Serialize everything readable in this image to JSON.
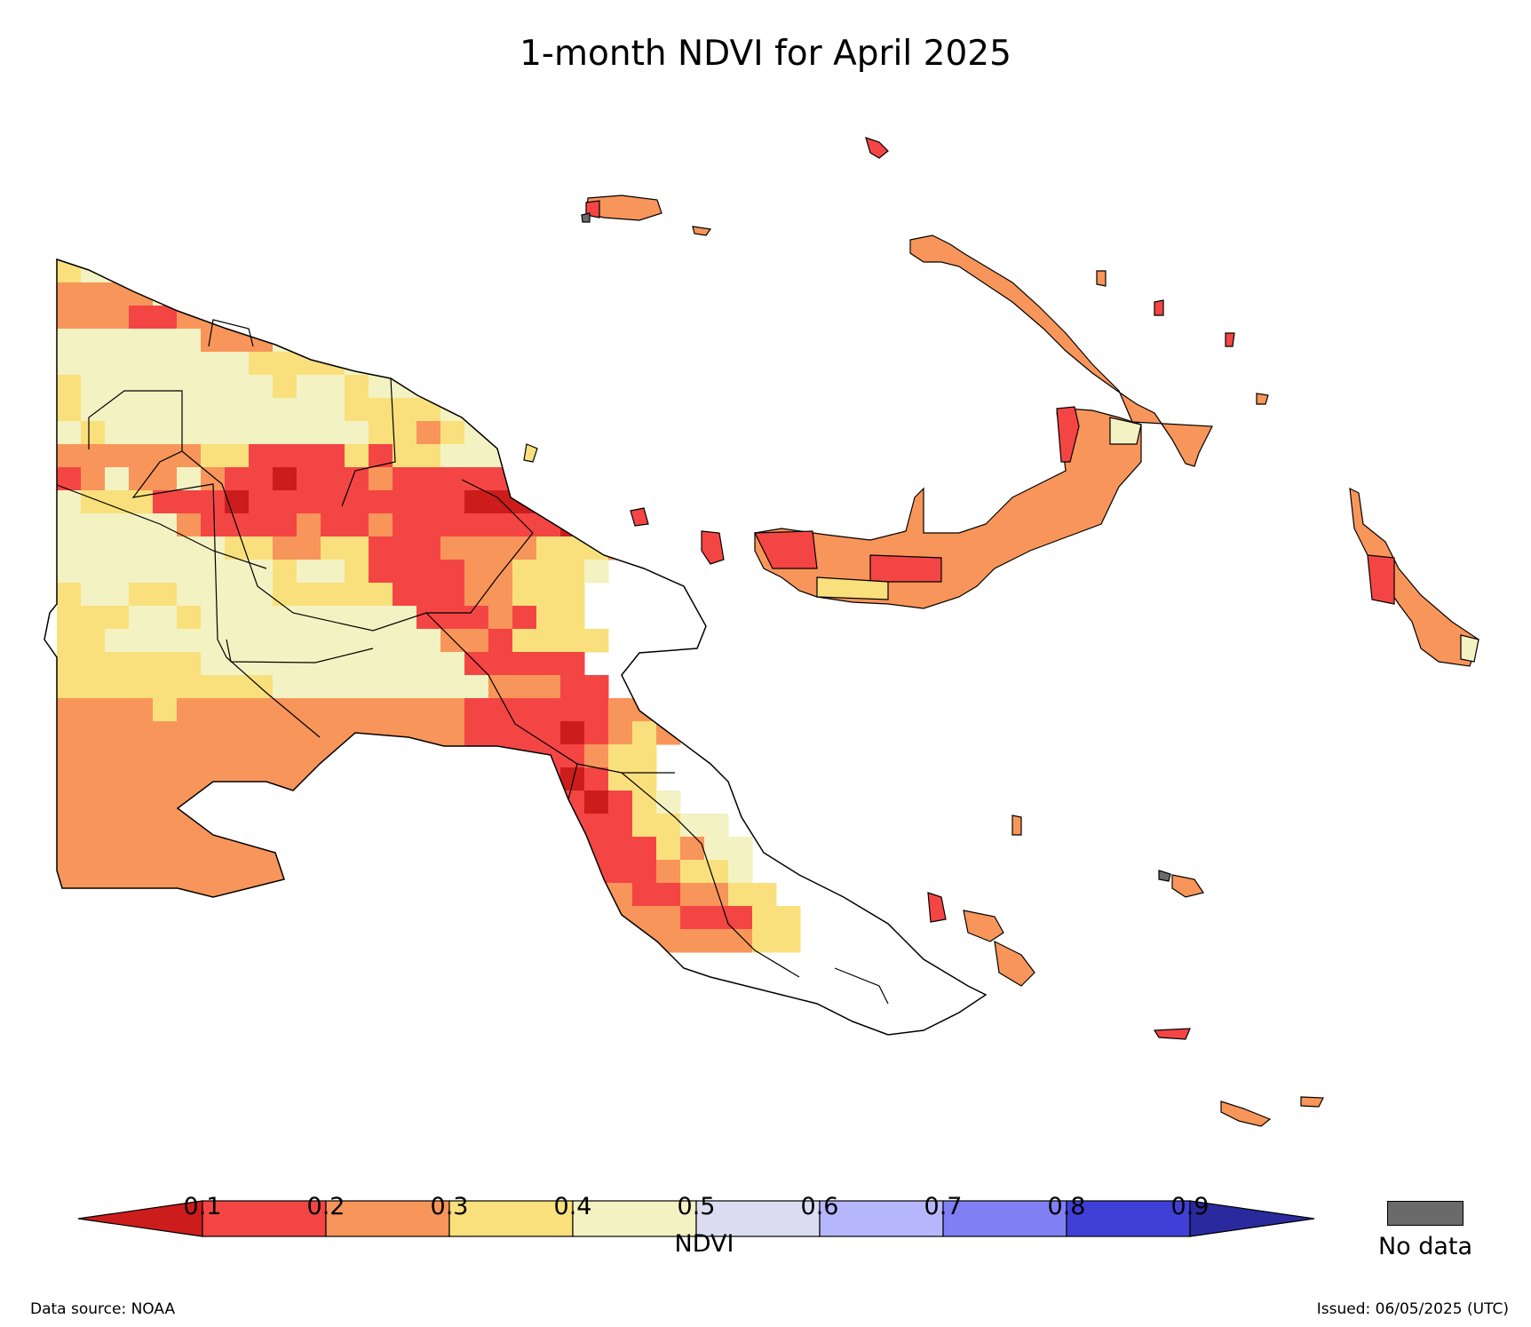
{
  "title": "1-month NDVI for April 2025",
  "colorbar": {
    "label": "NDVI",
    "ticks": [
      "0.1",
      "0.2",
      "0.3",
      "0.4",
      "0.5",
      "0.6",
      "0.7",
      "0.8",
      "0.9"
    ],
    "colors": {
      "under": "#cc1c1c",
      "c1": "#f44545",
      "c2": "#f8955a",
      "c3": "#f9e07c",
      "c4": "#f3f2c2",
      "c5": "#dcddf1",
      "c6": "#b6b6fc",
      "c7": "#8080f4",
      "c8": "#4040d8",
      "over": "#2a2a9e"
    },
    "nodata_label": "No data",
    "nodata_color": "#6a6a6a"
  },
  "map_regions": [
    {
      "name": "new-guinea-west",
      "ndvi_class": "0.3-0.4"
    },
    {
      "name": "highlands",
      "ndvi_class": "0.1-0.2"
    },
    {
      "name": "new-britain",
      "ndvi_class": "0.2-0.3"
    },
    {
      "name": "new-ireland",
      "ndvi_class": "0.2-0.3"
    },
    {
      "name": "bougainville",
      "ndvi_class": "0.2-0.3"
    },
    {
      "name": "manus",
      "ndvi_class": "0.2-0.3"
    }
  ],
  "footer": {
    "source": "Data source: NOAA",
    "issued": "Issued: 06/05/2025 (UTC)"
  }
}
